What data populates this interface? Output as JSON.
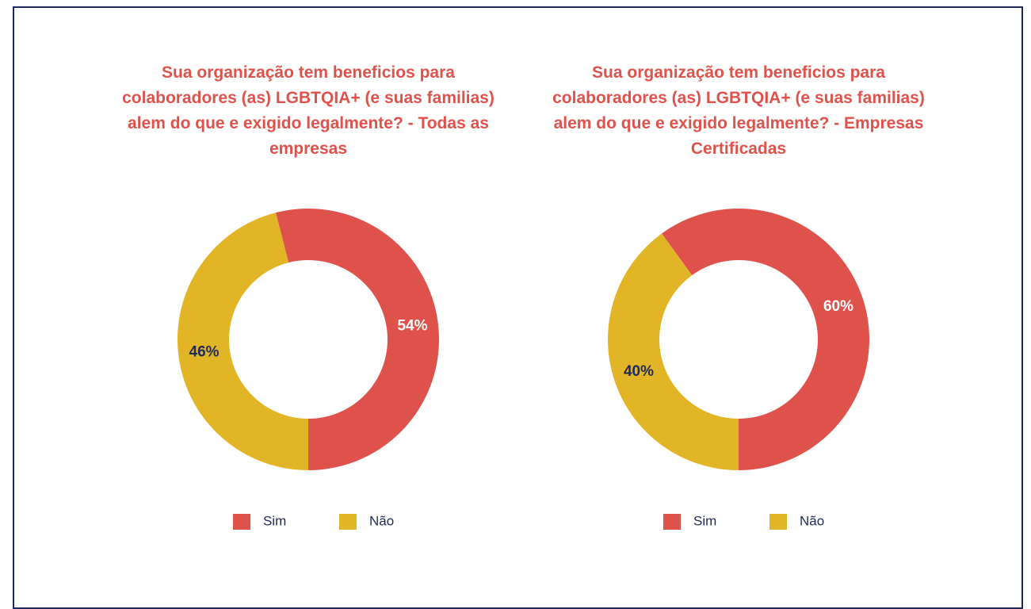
{
  "chart_data": [
    {
      "type": "donut",
      "title": "Sua organização tem beneficios para colaboradores (as) LGBTQIA+ (e suas familias) alem do que e exigido legalmente? - Todas as empresas",
      "categories": [
        "Sim",
        "Não"
      ],
      "values": [
        54,
        46
      ],
      "value_labels": [
        "54%",
        "46%"
      ],
      "colors": [
        "#df524c",
        "#e2b526"
      ],
      "label_colors": [
        "#ffffff",
        "#1f2a5a"
      ],
      "legend": "bottom"
    },
    {
      "type": "donut",
      "title": "Sua organização tem beneficios para colaboradores (as) LGBTQIA+ (e suas familias) alem do que e exigido legalmente? - Empresas Certificadas",
      "categories": [
        "Sim",
        "Não"
      ],
      "values": [
        60,
        40
      ],
      "value_labels": [
        "60%",
        "40%"
      ],
      "colors": [
        "#df524c",
        "#e2b526"
      ],
      "label_colors": [
        "#ffffff",
        "#1f2a5a"
      ],
      "legend": "bottom"
    }
  ]
}
